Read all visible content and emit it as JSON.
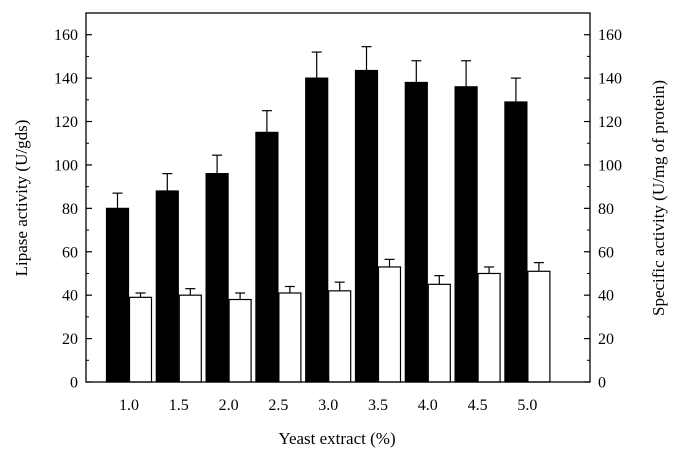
{
  "chart_data": {
    "type": "bar",
    "categories": [
      "1.0",
      "1.5",
      "2.0",
      "2.5",
      "3.0",
      "3.5",
      "4.0",
      "4.5",
      "5.0"
    ],
    "series": [
      {
        "name": "Lipase activity",
        "axis": "left",
        "fill": "#000000",
        "values": [
          80,
          88,
          96,
          115,
          140,
          143.5,
          138,
          136,
          129
        ],
        "errors": [
          7,
          8,
          8.5,
          10,
          12,
          11,
          10,
          12,
          11
        ]
      },
      {
        "name": "Specific activity",
        "axis": "right",
        "fill": "#ffffff",
        "values": [
          39,
          40,
          38,
          41,
          42,
          53,
          45,
          50,
          51
        ],
        "errors": [
          2,
          3,
          3,
          3,
          4,
          3.5,
          4,
          3,
          4
        ]
      }
    ],
    "xlabel": "Yeast extract (%)",
    "ylabel_left": "Lipase activity (U/gds)",
    "ylabel_right": "Specific activity (U/mg of protein)",
    "ylim": [
      0,
      170
    ],
    "y_ticks": [
      0,
      20,
      40,
      60,
      80,
      100,
      120,
      140,
      160
    ],
    "grid": false
  }
}
